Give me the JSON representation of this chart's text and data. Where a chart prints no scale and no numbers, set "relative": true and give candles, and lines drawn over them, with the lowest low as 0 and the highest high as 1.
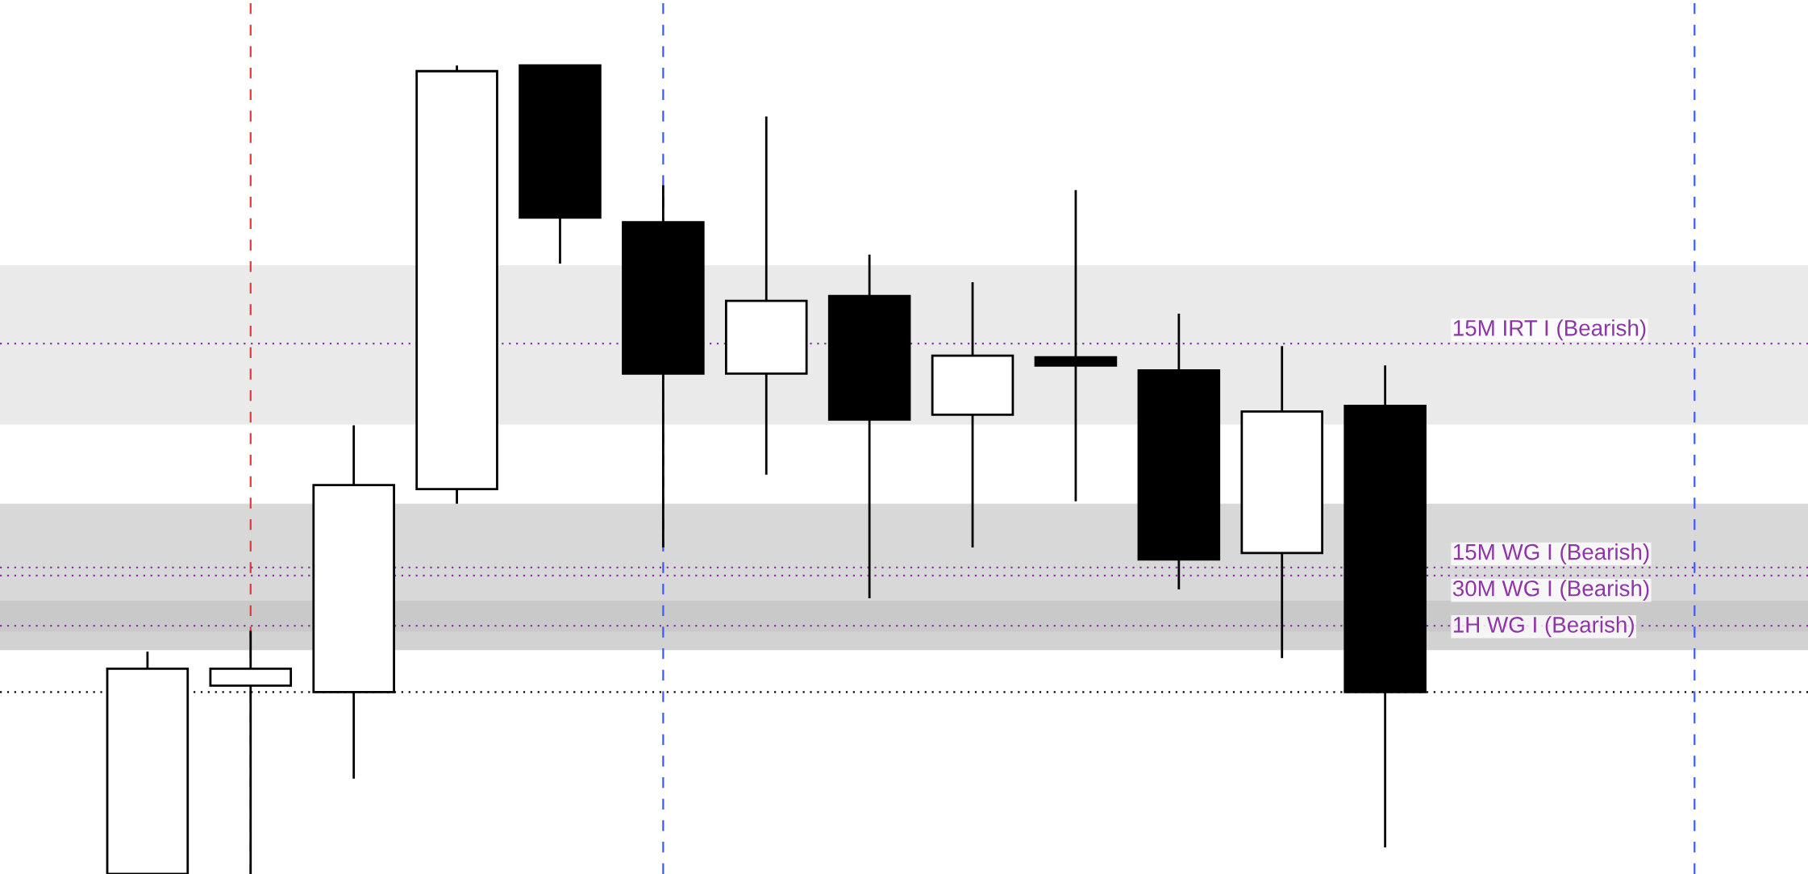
{
  "chart_data": {
    "type": "candlestick",
    "relative": true,
    "categories": [
      null,
      null,
      null,
      null,
      null,
      null,
      null,
      null,
      null,
      null,
      null,
      null,
      null
    ],
    "ohlc": [
      [
        0,
        0.275,
        0,
        0.254
      ],
      [
        0.233,
        0.301,
        0,
        0.254
      ],
      [
        0.225,
        0.555,
        0.118,
        0.481
      ],
      [
        0.476,
        1.0,
        0.458,
        0.993
      ],
      [
        1.0,
        1.0,
        0.755,
        0.812
      ],
      [
        0.806,
        0.852,
        0.404,
        0.619
      ],
      [
        0.619,
        0.937,
        0.494,
        0.709
      ],
      [
        0.715,
        0.766,
        0.341,
        0.562
      ],
      [
        0.568,
        0.732,
        0.404,
        0.641
      ],
      [
        0.639,
        0.846,
        0.461,
        0.629
      ],
      [
        0.623,
        0.693,
        0.352,
        0.389
      ],
      [
        0.397,
        0.653,
        0.267,
        0.572
      ],
      [
        0.579,
        0.629,
        0.033,
        0.225
      ]
    ],
    "bands": [
      {
        "axis": "y",
        "from": 0.556,
        "to": 0.753,
        "color": "#d9d9d9"
      },
      {
        "axis": "y",
        "from": 0.277,
        "to": 0.458,
        "color": "#d9d9d9"
      },
      {
        "axis": "y",
        "from": 0.3,
        "to": 0.458,
        "color": "#c8c8c8"
      },
      {
        "axis": "y",
        "from": 0.277,
        "to": 0.338,
        "color": "#bdbdbd"
      }
    ],
    "ref_lines": [
      {
        "axis": "y",
        "value": 0.225,
        "color": "#000000",
        "line_style": "dotted"
      },
      {
        "axis": "y",
        "value": 0.656,
        "label": "15M IRT I (Bearish)",
        "color": "#8e35a8",
        "line_style": "dotted"
      },
      {
        "axis": "y",
        "value": 0.379,
        "label": "15M WG I (Bearish)",
        "color": "#8e35a8",
        "line_style": "dotted"
      },
      {
        "axis": "y",
        "value": 0.369,
        "label": "30M WG I (Bearish)",
        "color": "#8e35a8",
        "line_style": "dotted"
      },
      {
        "axis": "y",
        "value": 0.307,
        "label": "1H WG I (Bearish)",
        "color": "#8e35a8",
        "line_style": "dotted"
      }
    ]
  }
}
